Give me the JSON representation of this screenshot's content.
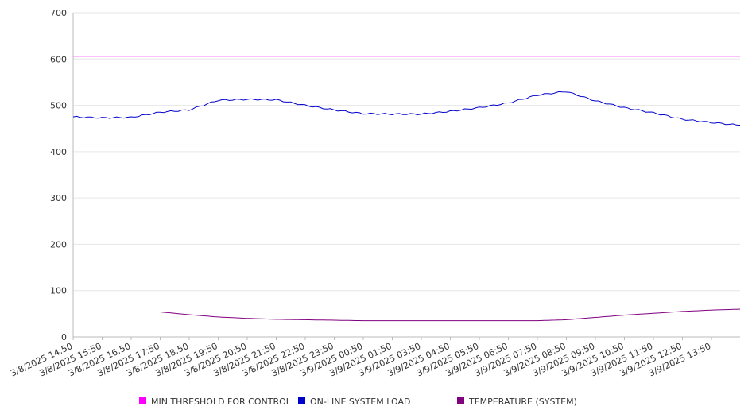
{
  "chart_data": {
    "type": "line",
    "ylim": [
      0,
      700
    ],
    "yticks": [
      0,
      100,
      200,
      300,
      400,
      500,
      600,
      700
    ],
    "grid": "horizontal",
    "legend_position": "bottom",
    "x_tick_labels": [
      "3/8/2025 14:50",
      "3/8/2025 15:50",
      "3/8/2025 16:50",
      "3/8/2025 17:50",
      "3/8/2025 18:50",
      "3/8/2025 19:50",
      "3/8/2025 20:50",
      "3/8/2025 21:50",
      "3/8/2025 22:50",
      "3/8/2025 23:50",
      "3/9/2025 00:50",
      "3/9/2025 01:50",
      "3/9/2025 03:50",
      "3/9/2025 04:50",
      "3/9/2025 05:50",
      "3/9/2025 06:50",
      "3/9/2025 07:50",
      "3/9/2025 08:50",
      "3/9/2025 09:50",
      "3/9/2025 10:50",
      "3/9/2025 11:50",
      "3/9/2025 12:50",
      "3/9/2025 13:50"
    ],
    "x": [
      "3/8/2025 14:50",
      "3/8/2025 15:50",
      "3/8/2025 16:50",
      "3/8/2025 17:50",
      "3/8/2025 18:50",
      "3/8/2025 19:50",
      "3/8/2025 20:50",
      "3/8/2025 21:50",
      "3/8/2025 22:50",
      "3/8/2025 23:50",
      "3/9/2025 00:50",
      "3/9/2025 01:50",
      "3/9/2025 03:50",
      "3/9/2025 04:50",
      "3/9/2025 05:50",
      "3/9/2025 06:50",
      "3/9/2025 07:50",
      "3/9/2025 08:50",
      "3/9/2025 09:50",
      "3/9/2025 10:50",
      "3/9/2025 11:50",
      "3/9/2025 12:50",
      "3/9/2025 13:50",
      "3/9/2025 14:40"
    ],
    "series": [
      {
        "name": "MIN THRESHOLD FOR CONTROL",
        "color": "#ff00ff",
        "values": [
          606,
          606,
          606,
          606,
          606,
          606,
          606,
          606,
          606,
          606,
          606,
          606,
          606,
          606,
          606,
          606,
          606,
          606,
          606,
          606,
          606,
          606,
          606,
          606
        ]
      },
      {
        "name": "ON-LINE SYSTEM LOAD",
        "color": "#0000cc",
        "values": [
          475,
          473,
          474,
          485,
          490,
          511,
          513,
          512,
          500,
          490,
          482,
          481,
          481,
          487,
          495,
          505,
          522,
          530,
          510,
          495,
          484,
          470,
          463,
          457
        ]
      },
      {
        "name": "TEMPERATURE (SYSTEM)",
        "color": "#800080",
        "values": [
          54,
          54,
          54,
          54,
          48,
          43,
          40,
          38,
          37,
          36,
          35,
          35,
          35,
          35,
          35,
          35,
          35,
          37,
          42,
          47,
          51,
          55,
          58,
          60
        ]
      }
    ]
  }
}
